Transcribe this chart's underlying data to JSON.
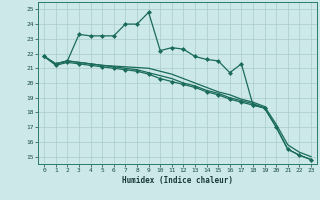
{
  "title": "",
  "xlabel": "Humidex (Indice chaleur)",
  "bg_color": "#cce8e8",
  "grid_color": "#aacccc",
  "line_color": "#1a6b5a",
  "xlim": [
    -0.5,
    23.5
  ],
  "ylim": [
    14.5,
    25.5
  ],
  "yticks": [
    15,
    16,
    17,
    18,
    19,
    20,
    21,
    22,
    23,
    24,
    25
  ],
  "xticks": [
    0,
    1,
    2,
    3,
    4,
    5,
    6,
    7,
    8,
    9,
    10,
    11,
    12,
    13,
    14,
    15,
    16,
    17,
    18,
    19,
    20,
    21,
    22,
    23
  ],
  "series": [
    {
      "x": [
        0,
        1,
        2,
        3,
        4,
        5,
        6,
        7,
        8,
        9,
        10,
        11,
        12,
        13,
        14,
        15,
        16,
        17,
        18,
        19
      ],
      "y": [
        21.8,
        21.3,
        21.5,
        23.3,
        23.2,
        23.2,
        23.2,
        24.0,
        24.0,
        24.8,
        22.2,
        22.4,
        22.3,
        21.8,
        21.6,
        21.5,
        20.7,
        21.3,
        18.5,
        18.3
      ],
      "marker": "D",
      "markersize": 2.0,
      "linewidth": 0.9
    },
    {
      "x": [
        0,
        1,
        2,
        3,
        4,
        5,
        6,
        7,
        8,
        9,
        10,
        11,
        12,
        13,
        14,
        15,
        16,
        17,
        18,
        19,
        20,
        21,
        22,
        23
      ],
      "y": [
        21.8,
        21.3,
        21.5,
        21.4,
        21.3,
        21.2,
        21.1,
        21.0,
        20.9,
        20.7,
        20.5,
        20.3,
        20.0,
        19.8,
        19.5,
        19.3,
        19.0,
        18.8,
        18.6,
        18.3,
        17.0,
        15.5,
        15.1,
        14.8
      ],
      "marker": null,
      "markersize": 0,
      "linewidth": 0.9
    },
    {
      "x": [
        0,
        1,
        2,
        3,
        4,
        5,
        6,
        7,
        8,
        9,
        10,
        11,
        12,
        13,
        14,
        15,
        16,
        17,
        18,
        19,
        20,
        21,
        22,
        23
      ],
      "y": [
        21.8,
        21.2,
        21.4,
        21.3,
        21.2,
        21.1,
        21.0,
        20.9,
        20.8,
        20.6,
        20.3,
        20.1,
        19.9,
        19.7,
        19.4,
        19.2,
        18.9,
        18.7,
        18.5,
        18.3,
        17.0,
        15.5,
        15.1,
        14.8
      ],
      "marker": "D",
      "markersize": 2.0,
      "linewidth": 0.9
    },
    {
      "x": [
        0,
        1,
        2,
        3,
        4,
        5,
        6,
        7,
        8,
        9,
        10,
        11,
        12,
        13,
        14,
        15,
        16,
        17,
        18,
        19,
        20,
        21,
        22,
        23
      ],
      "y": [
        21.8,
        21.3,
        21.5,
        21.4,
        21.3,
        21.2,
        21.15,
        21.1,
        21.05,
        21.0,
        20.8,
        20.6,
        20.3,
        20.0,
        19.7,
        19.4,
        19.2,
        18.9,
        18.7,
        18.4,
        17.2,
        15.8,
        15.3,
        15.0
      ],
      "marker": null,
      "markersize": 0,
      "linewidth": 0.9
    }
  ]
}
